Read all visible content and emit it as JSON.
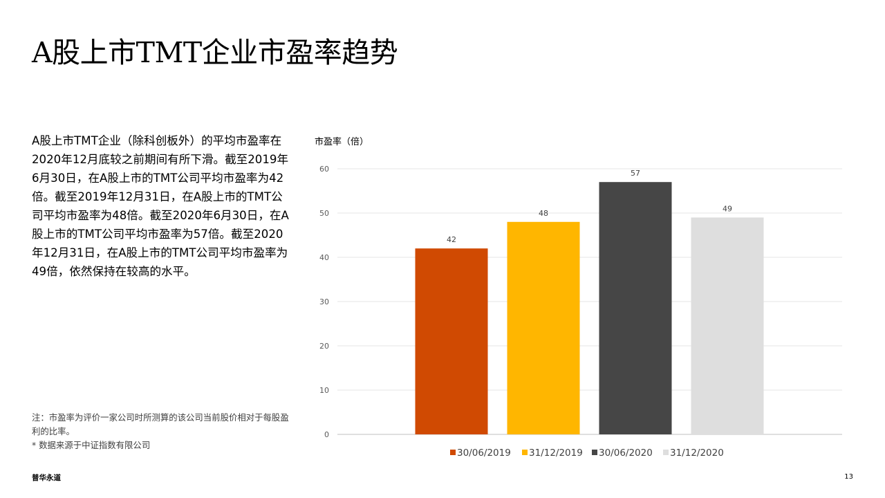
{
  "page": {
    "title": "A股上市TMT企业市盈率趋势",
    "body": "A股上市TMT企业（除科创板外）的平均市盈率在2020年12月底较之前期间有所下滑。截至2019年6月30日，在A股上市的TMT公司平均市盈率为42倍。截至2019年12月31日，在A股上市的TMT公司平均市盈率为48倍。截至2020年6月30日，在A股上市的TMT公司平均市盈率为57倍。截至2020年12月31日，在A股上市的TMT公司平均市盈率为49倍，依然保持在较高的水平。",
    "note": "注：市盈率为评价一家公司时所测算的该公司当前股价相对于每股盈利的比率。",
    "source": "* 数据来源于中证指数有限公司",
    "footer_left": "普华永道",
    "page_number": "13"
  },
  "chart_data": {
    "type": "bar",
    "title": "",
    "ylabel": "市盈率（倍）",
    "xlabel": "",
    "categories": [
      "30/06/2019",
      "31/12/2019",
      "30/06/2020",
      "31/12/2020"
    ],
    "values": [
      42,
      48,
      57,
      49
    ],
    "data_labels": [
      "42",
      "48",
      "57",
      "49"
    ],
    "colors": [
      "#D04A02",
      "#FFB600",
      "#464646",
      "#DEDEDE"
    ],
    "ylim": [
      0,
      60
    ],
    "yticks": [
      "0",
      "10",
      "20",
      "30",
      "40",
      "50",
      "60"
    ],
    "grid": true,
    "legend_position": "bottom"
  }
}
